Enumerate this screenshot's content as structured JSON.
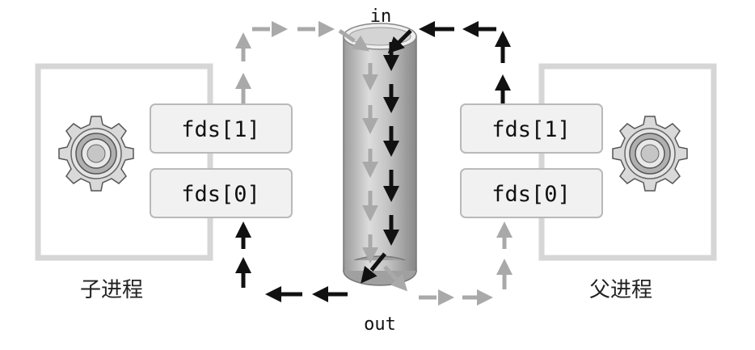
{
  "labels": {
    "pipe_in": "in",
    "pipe_out": "out"
  },
  "child_process": {
    "label": "子进程",
    "icon": "gear-icon",
    "fds": [
      "fds[1]",
      "fds[0]"
    ]
  },
  "parent_process": {
    "label": "父进程",
    "icon": "gear-icon",
    "fds": [
      "fds[1]",
      "fds[0]"
    ]
  },
  "colors": {
    "active_flow": "#111111",
    "inactive_flow": "#a9a9a9",
    "box_border": "#d6d6d6",
    "fd_fill": "#f1f1f1"
  }
}
